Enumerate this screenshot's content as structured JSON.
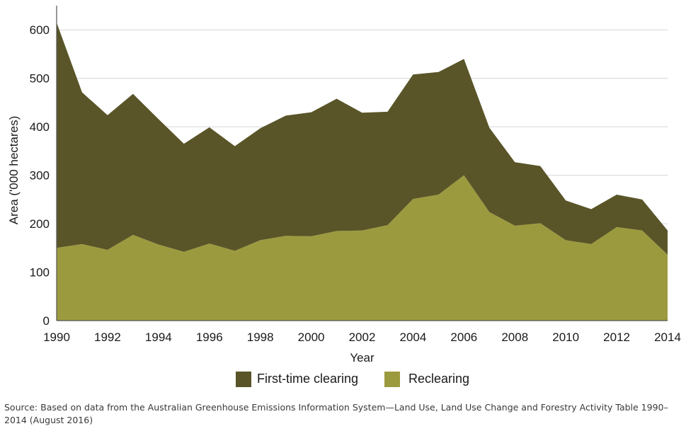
{
  "chart_data": {
    "type": "area",
    "stacked": true,
    "x": [
      1990,
      1991,
      1992,
      1993,
      1994,
      1995,
      1996,
      1997,
      1998,
      1999,
      2000,
      2001,
      2002,
      2003,
      2004,
      2005,
      2006,
      2007,
      2008,
      2009,
      2010,
      2011,
      2012,
      2013,
      2014
    ],
    "series": [
      {
        "name": "Reclearing",
        "color": "#9c9a3e",
        "values": [
          150,
          158,
          146,
          177,
          157,
          142,
          159,
          144,
          166,
          175,
          174,
          185,
          186,
          197,
          251,
          260,
          300,
          224,
          196,
          201,
          166,
          158,
          193,
          186,
          136
        ]
      },
      {
        "name": "First-time clearing",
        "color": "#595528",
        "values": [
          465,
          313,
          278,
          291,
          259,
          223,
          240,
          216,
          231,
          248,
          256,
          273,
          243,
          234,
          257,
          253,
          240,
          174,
          131,
          118,
          82,
          72,
          67,
          64,
          50
        ]
      }
    ],
    "xlabel": "Year",
    "ylabel": "Area ('000 hectares)",
    "xlim": [
      1990,
      2014
    ],
    "ylim": [
      0,
      650
    ],
    "x_ticks": [
      "1990",
      "1992",
      "1994",
      "1996",
      "1998",
      "2000",
      "2002",
      "2004",
      "2006",
      "2008",
      "2010",
      "2012",
      "2014"
    ],
    "y_ticks": [
      "0",
      "100",
      "200",
      "300",
      "400",
      "500",
      "600"
    ],
    "grid": "horizontal",
    "legend_position": "bottom",
    "legend_items": [
      "First-time clearing",
      "Reclearing"
    ]
  },
  "source_note": "Source: Based on data from the Australian Greenhouse Emissions Information System—Land Use, Land Use Change and Forestry Activity Table 1990–2014 (August 2016)",
  "colors": {
    "grid": "#d4d4d4",
    "axis": "#555555"
  }
}
